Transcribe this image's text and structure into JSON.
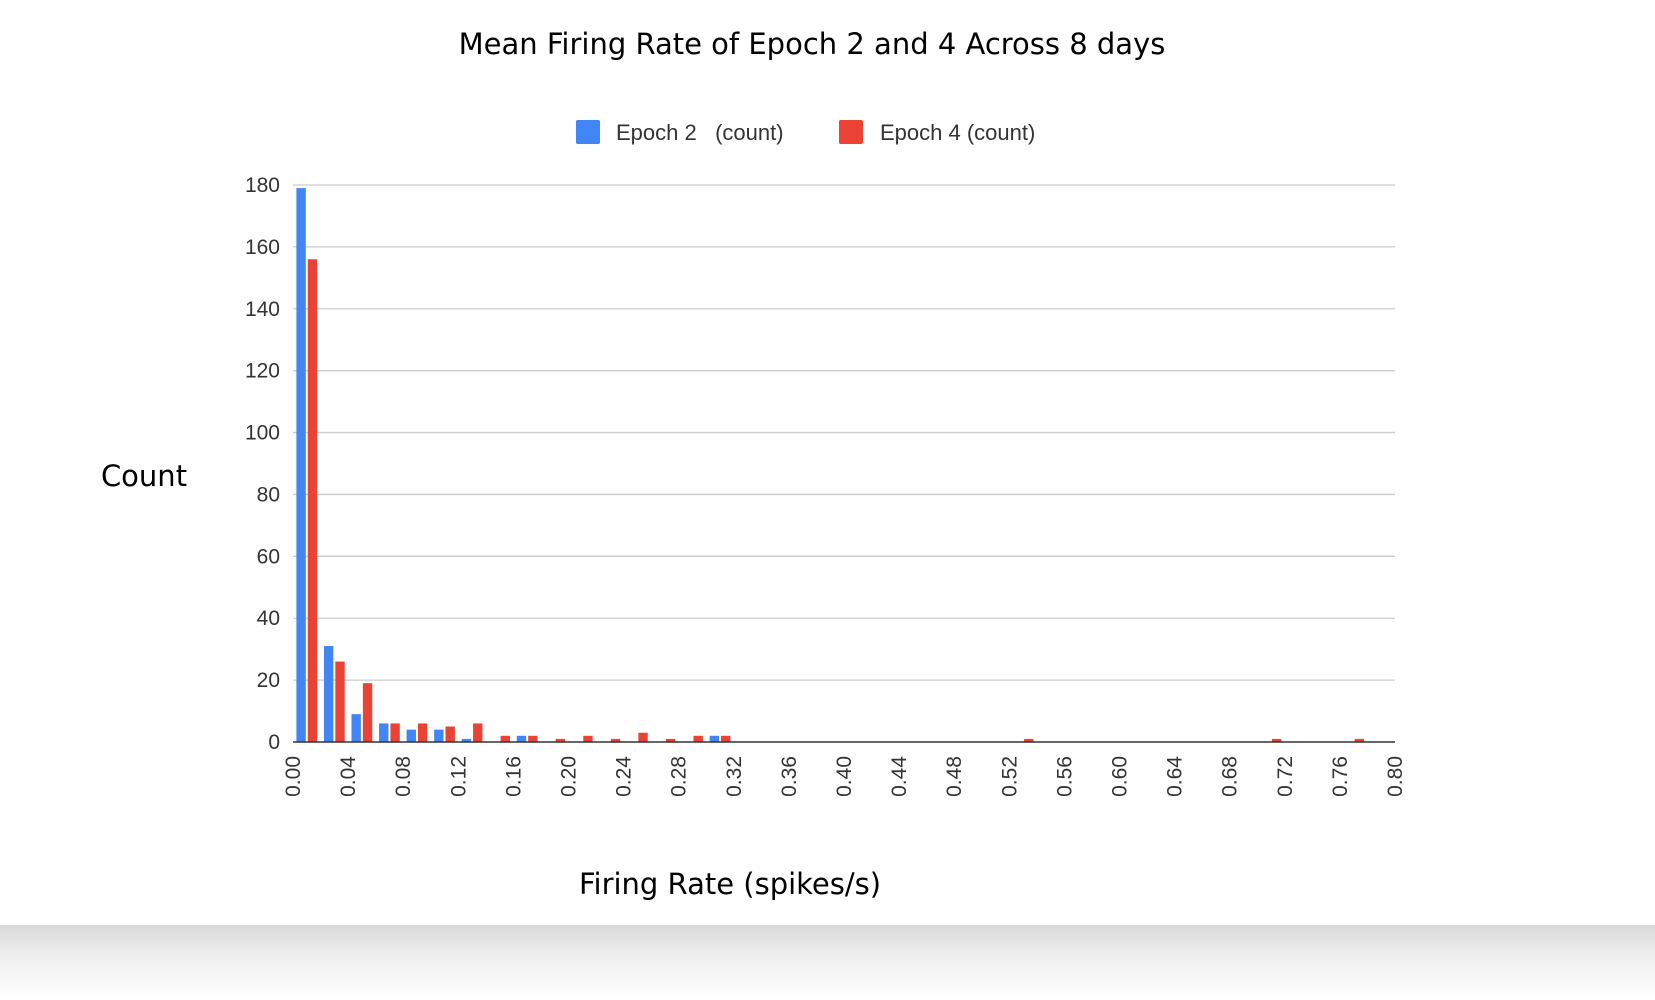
{
  "chart_data": {
    "type": "bar",
    "title": "Mean Firing Rate of Epoch 2 and 4 Across 8 days",
    "xlabel": "Firing Rate (spikes/s)",
    "ylabel": "Count",
    "x_ticks": [
      "0.00",
      "0.04",
      "0.08",
      "0.12",
      "0.16",
      "0.20",
      "0.24",
      "0.28",
      "0.32",
      "0.36",
      "0.40",
      "0.44",
      "0.48",
      "0.52",
      "0.56",
      "0.60",
      "0.64",
      "0.68",
      "0.72",
      "0.76",
      "0.80"
    ],
    "y_ticks": [
      "0",
      "20",
      "40",
      "60",
      "80",
      "100",
      "120",
      "140",
      "160",
      "180"
    ],
    "xlim": [
      0,
      0.8
    ],
    "ylim": [
      0,
      180
    ],
    "bin_width": 0.02,
    "grid": true,
    "legend_position": "top",
    "series": [
      {
        "name": "Epoch 2   (count)",
        "color": "#4285f4",
        "bins": [
          {
            "x": 0.0,
            "value": 179
          },
          {
            "x": 0.02,
            "value": 31
          },
          {
            "x": 0.04,
            "value": 9
          },
          {
            "x": 0.06,
            "value": 6
          },
          {
            "x": 0.08,
            "value": 4
          },
          {
            "x": 0.1,
            "value": 4
          },
          {
            "x": 0.12,
            "value": 1
          },
          {
            "x": 0.16,
            "value": 2
          },
          {
            "x": 0.3,
            "value": 2
          }
        ]
      },
      {
        "name": "Epoch 4 (count)",
        "color": "#ea4335",
        "bins": [
          {
            "x": 0.0,
            "value": 156
          },
          {
            "x": 0.02,
            "value": 26
          },
          {
            "x": 0.04,
            "value": 19
          },
          {
            "x": 0.06,
            "value": 6
          },
          {
            "x": 0.08,
            "value": 6
          },
          {
            "x": 0.1,
            "value": 5
          },
          {
            "x": 0.12,
            "value": 6
          },
          {
            "x": 0.14,
            "value": 2
          },
          {
            "x": 0.16,
            "value": 2
          },
          {
            "x": 0.18,
            "value": 1
          },
          {
            "x": 0.2,
            "value": 2
          },
          {
            "x": 0.22,
            "value": 1
          },
          {
            "x": 0.24,
            "value": 3
          },
          {
            "x": 0.26,
            "value": 1
          },
          {
            "x": 0.28,
            "value": 2
          },
          {
            "x": 0.3,
            "value": 2
          },
          {
            "x": 0.52,
            "value": 1
          },
          {
            "x": 0.7,
            "value": 1
          },
          {
            "x": 0.76,
            "value": 1
          }
        ]
      }
    ]
  }
}
